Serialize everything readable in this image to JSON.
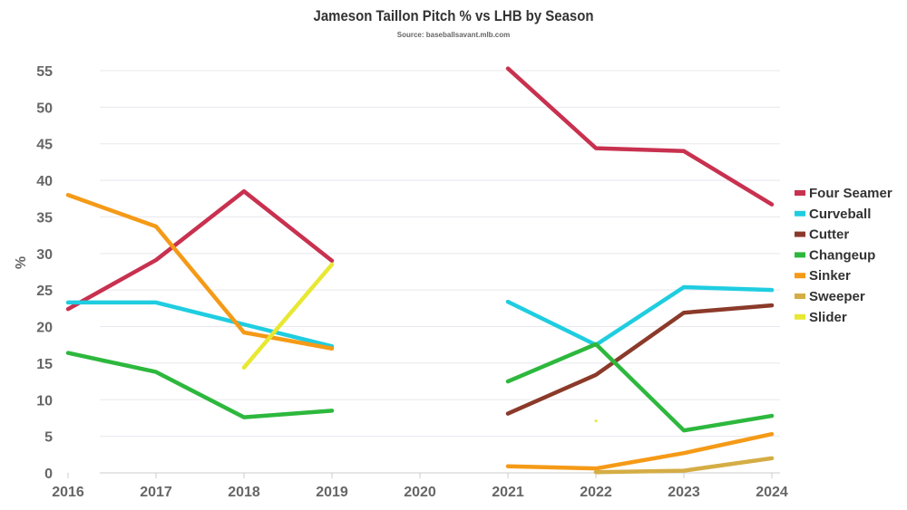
{
  "chart_data": {
    "type": "line",
    "title": "Jameson Taillon Pitch % vs LHB by Season",
    "subtitle": "Source: baseballsavant.mlb.com",
    "xlabel": "",
    "ylabel": "%",
    "x": [
      2016,
      2017,
      2018,
      2019,
      2020,
      2021,
      2022,
      2023,
      2024
    ],
    "ylim": [
      0,
      55
    ],
    "yticks": [
      0,
      5,
      10,
      15,
      20,
      25,
      30,
      35,
      40,
      45,
      50,
      55
    ],
    "grid": true,
    "legend": "right",
    "series": [
      {
        "name": "Four Seamer",
        "color": "#c8314f",
        "values": [
          22.4,
          29.1,
          38.5,
          29.0,
          null,
          55.3,
          44.4,
          44.0,
          36.7
        ]
      },
      {
        "name": "Curveball",
        "color": "#1fcde0",
        "values": [
          23.3,
          23.3,
          20.3,
          17.3,
          null,
          23.4,
          17.5,
          25.4,
          25.0
        ]
      },
      {
        "name": "Cutter",
        "color": "#8b3a2a",
        "values": [
          null,
          null,
          null,
          null,
          null,
          8.1,
          13.4,
          21.9,
          22.9
        ]
      },
      {
        "name": "Changeup",
        "color": "#2db83d",
        "values": [
          16.4,
          13.8,
          7.6,
          8.5,
          null,
          12.5,
          17.6,
          5.8,
          7.8
        ]
      },
      {
        "name": "Sinker",
        "color": "#f59a17",
        "values": [
          38.0,
          33.7,
          19.2,
          17.0,
          null,
          0.9,
          0.6,
          2.7,
          5.3
        ]
      },
      {
        "name": "Sweeper",
        "color": "#d4ad45",
        "values": [
          null,
          null,
          null,
          null,
          null,
          null,
          0.1,
          0.3,
          2.0
        ]
      },
      {
        "name": "Slider",
        "color": "#e8e832",
        "values": [
          null,
          null,
          14.4,
          28.5,
          null,
          null,
          7.1,
          null,
          null
        ]
      }
    ]
  }
}
